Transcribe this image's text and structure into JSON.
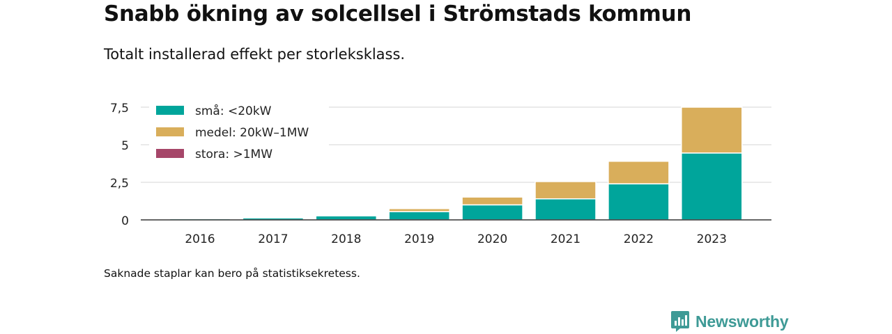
{
  "title": "Snabb ökning av solcellsel i Strömstads kommun",
  "subtitle": "Totalt installerad effekt per storleksklass.",
  "footnote": "Saknade staplar kan bero på statistiksekretess.",
  "brand": "Newsworthy",
  "colors": {
    "accent": "#3e9a96"
  },
  "chart_data": {
    "type": "bar",
    "stacked": true,
    "categories": [
      "2016",
      "2017",
      "2018",
      "2019",
      "2020",
      "2021",
      "2022",
      "2023"
    ],
    "series": [
      {
        "name": "små: <20kW",
        "color": "#00a59b",
        "values": [
          0.08,
          0.13,
          0.27,
          0.55,
          1.0,
          1.4,
          2.4,
          4.45
        ]
      },
      {
        "name": "medel: 20kW–1MW",
        "color": "#d9ae5b",
        "values": [
          0.0,
          0.0,
          0.02,
          0.2,
          0.52,
          1.15,
          1.5,
          3.05
        ]
      },
      {
        "name": "stora: >1MW",
        "color": "#a64669",
        "values": [
          0,
          0,
          0,
          0,
          0,
          0,
          0,
          0
        ]
      }
    ],
    "ylim": [
      0,
      7.5
    ],
    "yticks": [
      0,
      2.5,
      5,
      7.5
    ],
    "ytick_labels": [
      "0",
      "2,5",
      "5",
      "7,5"
    ],
    "grid": true,
    "legend_position": "top-left"
  }
}
